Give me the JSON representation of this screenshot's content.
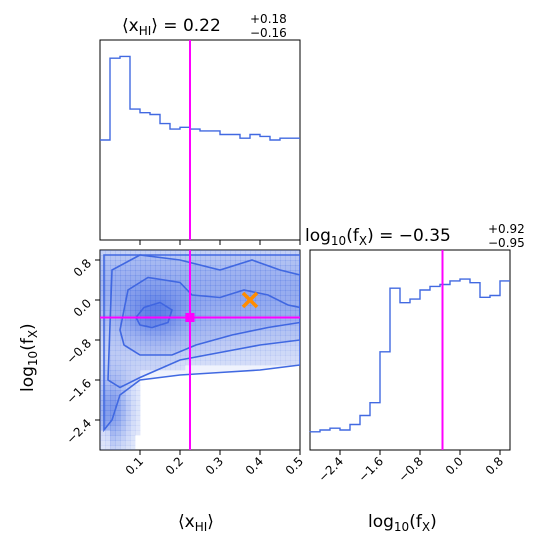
{
  "chart_data": {
    "type": "corner",
    "colors": {
      "hist": "#4169e1",
      "contour": "#4169e1",
      "truth": "#ff00ff",
      "marker": "#ff8c00"
    },
    "params": {
      "xHI": {
        "label_base": "⟨x",
        "label_sub": "HI",
        "label_close": "⟩",
        "range": [
          0.0,
          0.5
        ],
        "ticks": [
          "0.1",
          "0.2",
          "0.3",
          "0.4",
          "0.5"
        ],
        "tick_values": [
          0.1,
          0.2,
          0.3,
          0.4,
          0.5
        ],
        "median": 0.225,
        "title_main": "⟨x",
        "title_sub": "HI",
        "title_eq": "⟩ = 0.22",
        "title_plus": "+0.18",
        "title_minus": "−0.16"
      },
      "fX": {
        "label_base": "log",
        "label_sub10": "10",
        "label_fn": "(f",
        "label_sub": "X",
        "label_close": ")",
        "range": [
          -3.0,
          1.0
        ],
        "ticks": [
          "−2.4",
          "−1.6",
          "−0.8",
          "0.0",
          "0.8"
        ],
        "tick_values": [
          -2.4,
          -1.6,
          -0.8,
          0.0,
          0.8
        ],
        "median": -0.35,
        "title_main": "log",
        "title_sub10": "10",
        "title_fn": "(f",
        "title_sub": "X",
        "title_eq": ") = −0.35",
        "title_plus": "+0.92",
        "title_minus": "−0.95"
      }
    },
    "hist_xHI": {
      "bin_edges": [
        0.0,
        0.025,
        0.05,
        0.075,
        0.1,
        0.125,
        0.15,
        0.175,
        0.2,
        0.225,
        0.25,
        0.275,
        0.3,
        0.325,
        0.35,
        0.375,
        0.4,
        0.425,
        0.45,
        0.475,
        0.5
      ],
      "values": [
        0.55,
        1.0,
        1.01,
        0.72,
        0.7,
        0.69,
        0.64,
        0.61,
        0.62,
        0.61,
        0.6,
        0.6,
        0.58,
        0.58,
        0.56,
        0.58,
        0.57,
        0.55,
        0.56,
        0.56
      ]
    },
    "hist_fX": {
      "bin_edges": [
        -3.0,
        -2.8,
        -2.6,
        -2.4,
        -2.2,
        -2.0,
        -1.8,
        -1.6,
        -1.4,
        -1.2,
        -1.0,
        -0.8,
        -0.6,
        -0.4,
        -0.2,
        0.0,
        0.2,
        0.4,
        0.6,
        0.8,
        1.0
      ],
      "values": [
        0.1,
        0.11,
        0.12,
        0.11,
        0.14,
        0.19,
        0.26,
        0.54,
        0.89,
        0.81,
        0.83,
        0.88,
        0.9,
        0.91,
        0.93,
        0.94,
        0.92,
        0.84,
        0.85,
        0.93
      ]
    },
    "scatter_marker": {
      "xHI": 0.375,
      "fX": 0.0
    },
    "truth_point": {
      "xHI": 0.225,
      "fX": -0.35
    },
    "contours": [
      [
        [
          0.09,
          -0.35
        ],
        [
          0.11,
          -0.15
        ],
        [
          0.15,
          -0.05
        ],
        [
          0.18,
          -0.2
        ],
        [
          0.17,
          -0.45
        ],
        [
          0.13,
          -0.55
        ],
        [
          0.1,
          -0.5
        ]
      ],
      [
        [
          0.05,
          -0.6
        ],
        [
          0.07,
          0.2
        ],
        [
          0.12,
          0.45
        ],
        [
          0.2,
          0.35
        ],
        [
          0.23,
          0.1
        ],
        [
          0.3,
          0.05
        ],
        [
          0.36,
          0.2
        ],
        [
          0.42,
          0.1
        ],
        [
          0.47,
          -0.1
        ],
        [
          0.5,
          -0.15
        ],
        [
          0.5,
          -0.45
        ],
        [
          0.42,
          -0.55
        ],
        [
          0.33,
          -0.7
        ],
        [
          0.24,
          -0.9
        ],
        [
          0.18,
          -1.1
        ],
        [
          0.1,
          -1.1
        ],
        [
          0.06,
          -0.9
        ]
      ],
      [
        [
          0.02,
          -1.6
        ],
        [
          0.03,
          0.6
        ],
        [
          0.1,
          0.9
        ],
        [
          0.2,
          0.8
        ],
        [
          0.3,
          0.6
        ],
        [
          0.38,
          0.8
        ],
        [
          0.45,
          0.6
        ],
        [
          0.5,
          0.5
        ],
        [
          0.5,
          -0.8
        ],
        [
          0.4,
          -0.9
        ],
        [
          0.3,
          -1.05
        ],
        [
          0.2,
          -1.2
        ],
        [
          0.1,
          -1.55
        ],
        [
          0.05,
          -1.75
        ]
      ],
      [
        [
          0.01,
          -2.6
        ],
        [
          0.01,
          0.9
        ],
        [
          0.5,
          0.9
        ],
        [
          0.5,
          -1.3
        ],
        [
          0.4,
          -1.4
        ],
        [
          0.3,
          -1.45
        ],
        [
          0.2,
          -1.5
        ],
        [
          0.1,
          -1.6
        ],
        [
          0.05,
          -1.9
        ],
        [
          0.03,
          -2.4
        ]
      ]
    ]
  }
}
